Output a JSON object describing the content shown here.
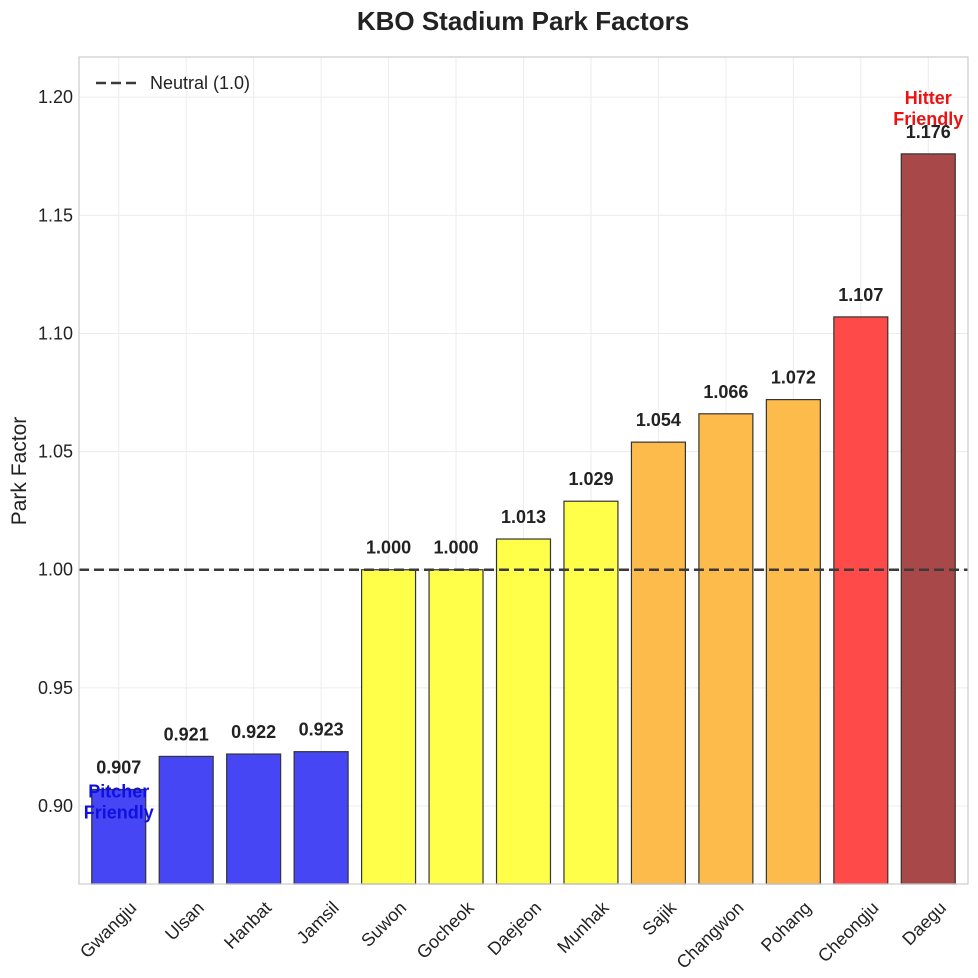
{
  "chart_data": {
    "type": "bar",
    "title": "KBO Stadium Park Factors",
    "xlabel": "",
    "ylabel": "Park Factor",
    "ylim": [
      0.867,
      1.217
    ],
    "yticks": [
      "0.90",
      "0.95",
      "1.00",
      "1.05",
      "1.10",
      "1.15",
      "1.20"
    ],
    "grid": true,
    "legend_position": "top-left",
    "categories": [
      "Gwangju",
      "Ulsan",
      "Hanbat",
      "Jamsil",
      "Suwon",
      "Gocheok",
      "Daejeon",
      "Munhak",
      "Sajik",
      "Changwon",
      "Pohang",
      "Cheongju",
      "Daegu"
    ],
    "values": [
      0.907,
      0.921,
      0.922,
      0.923,
      1.0,
      1.0,
      1.013,
      1.029,
      1.054,
      1.066,
      1.072,
      1.107,
      1.176
    ],
    "value_labels": [
      "0.907",
      "0.921",
      "0.922",
      "0.923",
      "1.000",
      "1.000",
      "1.013",
      "1.029",
      "1.054",
      "1.066",
      "1.072",
      "1.107",
      "1.176"
    ],
    "bar_colors": [
      "#4646f5",
      "#4646f5",
      "#4646f5",
      "#4646f5",
      "#ffff4a",
      "#ffff4a",
      "#ffff4a",
      "#ffff4a",
      "#fdbb4b",
      "#fdbb4b",
      "#fdbb4b",
      "#ff4a4a",
      "#a94848"
    ],
    "reference_line": {
      "value": 1.0,
      "label": "Neutral (1.0)",
      "color": "#3a3a3a"
    },
    "annotations": [
      {
        "lines": [
          "Pitcher",
          "Friendly"
        ],
        "category": "Gwangju",
        "color": "#1010e0"
      },
      {
        "lines": [
          "Hitter",
          "Friendly"
        ],
        "category": "Daegu",
        "color": "#ee1111"
      }
    ]
  }
}
